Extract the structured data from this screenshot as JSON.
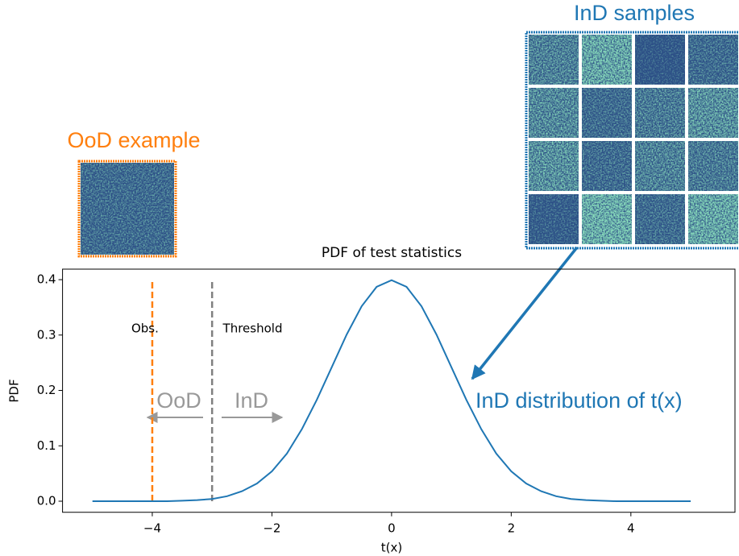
{
  "chart_data": {
    "type": "line",
    "title": "PDF of test statistics",
    "xlabel": "t(x)",
    "ylabel": "PDF",
    "x": [
      -5,
      -4.75,
      -4.5,
      -4.25,
      -4,
      -3.75,
      -3.5,
      -3.25,
      -3,
      -2.75,
      -2.5,
      -2.25,
      -2,
      -1.75,
      -1.5,
      -1.25,
      -1,
      -0.75,
      -0.5,
      -0.25,
      0,
      0.25,
      0.5,
      0.75,
      1,
      1.25,
      1.5,
      1.75,
      2,
      2.25,
      2.5,
      2.75,
      3,
      3.25,
      3.5,
      3.75,
      4,
      4.25,
      4.5,
      4.75,
      5
    ],
    "series": [
      {
        "name": "InD distribution of t(x)",
        "color": "#1f77b4",
        "values": [
          0,
          0,
          0,
          0,
          0,
          0,
          0.001,
          0.002,
          0.004,
          0.009,
          0.018,
          0.032,
          0.054,
          0.086,
          0.13,
          0.183,
          0.242,
          0.301,
          0.352,
          0.387,
          0.399,
          0.387,
          0.352,
          0.301,
          0.242,
          0.183,
          0.13,
          0.086,
          0.054,
          0.032,
          0.018,
          0.009,
          0.004,
          0.002,
          0.001,
          0,
          0,
          0,
          0,
          0,
          0
        ]
      }
    ],
    "vlines": [
      {
        "x": -4,
        "ymin": 0,
        "ymax": 0.4,
        "color": "#ff7f0e",
        "label": "Obs."
      },
      {
        "x": -3,
        "ymin": 0,
        "ymax": 0.4,
        "color": "#808080",
        "label": "Threshold"
      }
    ],
    "annotations": [
      "OoD",
      "InD",
      "OoD example",
      "InD samples"
    ],
    "xlim": [
      -5.5,
      5.74
    ],
    "ylim": [
      -0.02,
      0.419
    ],
    "xticks": [
      {
        "value": -4,
        "label": "−4"
      },
      {
        "value": -2,
        "label": "−2"
      },
      {
        "value": 0,
        "label": "0"
      },
      {
        "value": 2,
        "label": "2"
      },
      {
        "value": 4,
        "label": "4"
      }
    ],
    "yticks": [
      {
        "value": 0,
        "label": "0.0"
      },
      0.1,
      0.2,
      0.3,
      0.4
    ]
  }
}
